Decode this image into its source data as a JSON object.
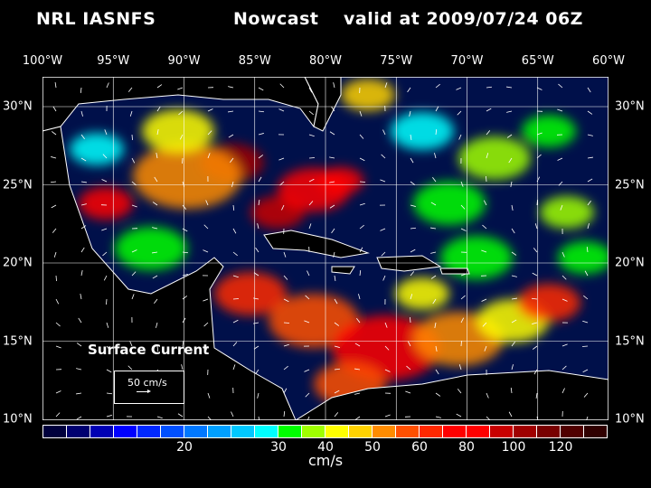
{
  "header": {
    "model": "NRL IASNFS",
    "product": "Nowcast",
    "valid": "valid at 2009/07/24 06Z"
  },
  "lon_labels": [
    "100°W",
    "95°W",
    "90°W",
    "85°W",
    "80°W",
    "75°W",
    "70°W",
    "65°W",
    "60°W"
  ],
  "lat_labels": [
    "30°N",
    "25°N",
    "20°N",
    "15°N",
    "10°N"
  ],
  "legend": {
    "title": "Surface Current",
    "reference": "50 cm/s"
  },
  "colorbar": {
    "unit": "cm/s",
    "colors": [
      "#00003c",
      "#000070",
      "#0000b4",
      "#0000ff",
      "#0028ff",
      "#0050ff",
      "#0078ff",
      "#00a0ff",
      "#00c8ff",
      "#00ffff",
      "#00ff00",
      "#a0ff00",
      "#ffff00",
      "#ffd200",
      "#ff8c00",
      "#ff5000",
      "#ff2800",
      "#ff0000",
      "#ff0000",
      "#c80000",
      "#a00000",
      "#780000",
      "#500000",
      "#300000"
    ],
    "labels": [
      {
        "text": "20",
        "boundary": 6
      },
      {
        "text": "30",
        "boundary": 10
      },
      {
        "text": "40",
        "boundary": 12
      },
      {
        "text": "50",
        "boundary": 14
      },
      {
        "text": "60",
        "boundary": 16
      },
      {
        "text": "80",
        "boundary": 18
      },
      {
        "text": "100",
        "boundary": 20
      },
      {
        "text": "120",
        "boundary": 22
      }
    ]
  }
}
